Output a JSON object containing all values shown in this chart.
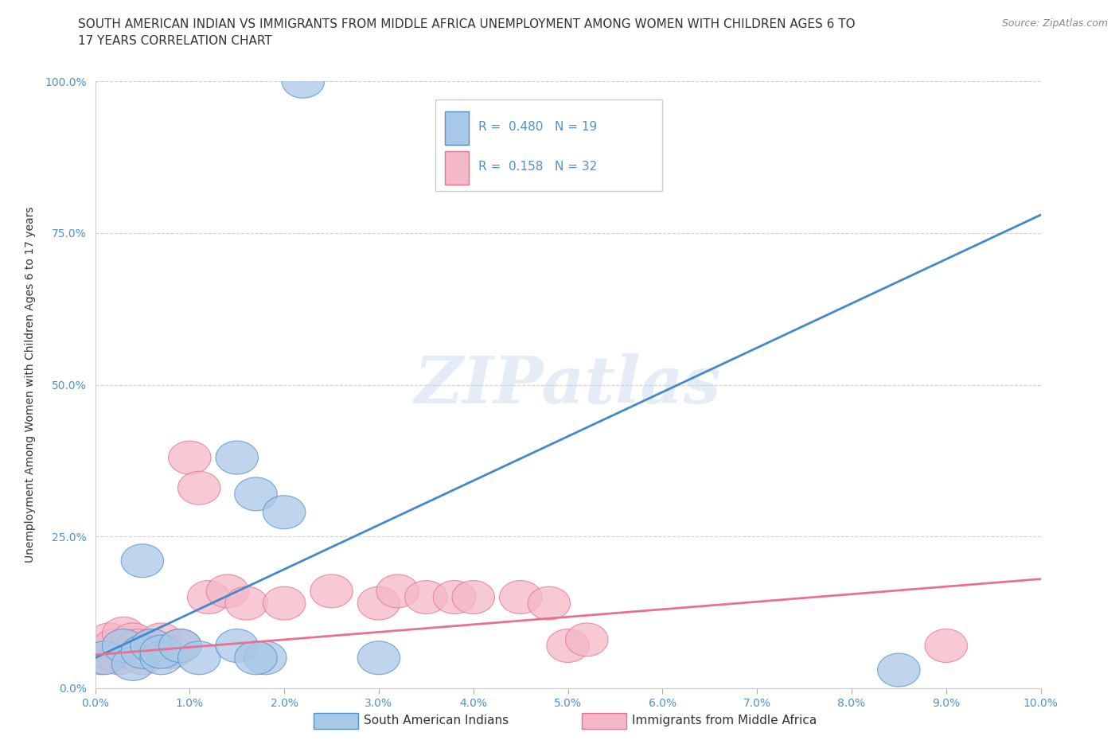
{
  "title_line1": "SOUTH AMERICAN INDIAN VS IMMIGRANTS FROM MIDDLE AFRICA UNEMPLOYMENT AMONG WOMEN WITH CHILDREN AGES 6 TO",
  "title_line2": "17 YEARS CORRELATION CHART",
  "source": "Source: ZipAtlas.com",
  "xlabel_ticks": [
    "0.0%",
    "1.0%",
    "2.0%",
    "3.0%",
    "4.0%",
    "5.0%",
    "6.0%",
    "7.0%",
    "8.0%",
    "9.0%",
    "10.0%"
  ],
  "ylabel_ticks": [
    "0.0%",
    "25.0%",
    "50.0%",
    "75.0%",
    "100.0%"
  ],
  "xlim": [
    0.0,
    10.0
  ],
  "ylim": [
    0.0,
    100.0
  ],
  "ylabel": "Unemployment Among Women with Children Ages 6 to 17 years",
  "legend_label1": "South American Indians",
  "legend_label2": "Immigrants from Middle Africa",
  "R1": 0.48,
  "N1": 19,
  "R2": 0.158,
  "N2": 32,
  "color1": "#a8c8e8",
  "color2": "#f4b8c8",
  "edge_color1": "#5090c8",
  "edge_color2": "#e87090",
  "line_color1": "#4488cc",
  "line_color2": "#e87090",
  "blue_scatter_x": [
    2.2,
    1.5,
    1.7,
    2.0,
    0.1,
    0.3,
    0.4,
    0.5,
    0.5,
    0.6,
    0.7,
    0.7,
    0.9,
    1.1,
    1.5,
    1.8,
    1.7,
    3.0,
    8.5
  ],
  "blue_scatter_y": [
    100.0,
    38.0,
    32.0,
    29.0,
    5.0,
    7.0,
    4.0,
    21.0,
    6.0,
    7.0,
    5.0,
    6.0,
    7.0,
    5.0,
    7.0,
    5.0,
    5.0,
    5.0,
    3.0
  ],
  "pink_scatter_x": [
    0.05,
    0.1,
    0.15,
    0.2,
    0.25,
    0.3,
    0.35,
    0.4,
    0.45,
    0.5,
    0.55,
    0.6,
    0.7,
    0.8,
    0.9,
    1.0,
    1.2,
    1.4,
    1.6,
    2.0,
    2.5,
    3.0,
    3.2,
    3.5,
    3.8,
    4.0,
    4.5,
    4.8,
    5.0,
    5.2,
    9.0,
    1.1
  ],
  "pink_scatter_y": [
    5.0,
    6.0,
    8.0,
    7.0,
    5.0,
    9.0,
    6.0,
    8.0,
    7.0,
    5.0,
    6.0,
    7.0,
    8.0,
    6.0,
    7.0,
    38.0,
    15.0,
    16.0,
    14.0,
    14.0,
    16.0,
    14.0,
    16.0,
    15.0,
    15.0,
    15.0,
    15.0,
    14.0,
    7.0,
    8.0,
    7.0,
    33.0
  ],
  "blue_line_x0": 0.0,
  "blue_line_y0": 5.0,
  "blue_line_x1": 10.0,
  "blue_line_y1": 78.0,
  "pink_line_x0": 0.0,
  "pink_line_y0": 5.5,
  "pink_line_x1": 10.0,
  "pink_line_y1": 18.0,
  "title_fontsize": 11,
  "axis_label_fontsize": 10,
  "tick_fontsize": 10,
  "source_fontsize": 9,
  "legend_fontsize": 11,
  "watermark_text": "ZIPatlas",
  "background_color": "#ffffff",
  "grid_color": "#d0d0d0",
  "tick_color": "#5090c8",
  "text_color": "#333333"
}
